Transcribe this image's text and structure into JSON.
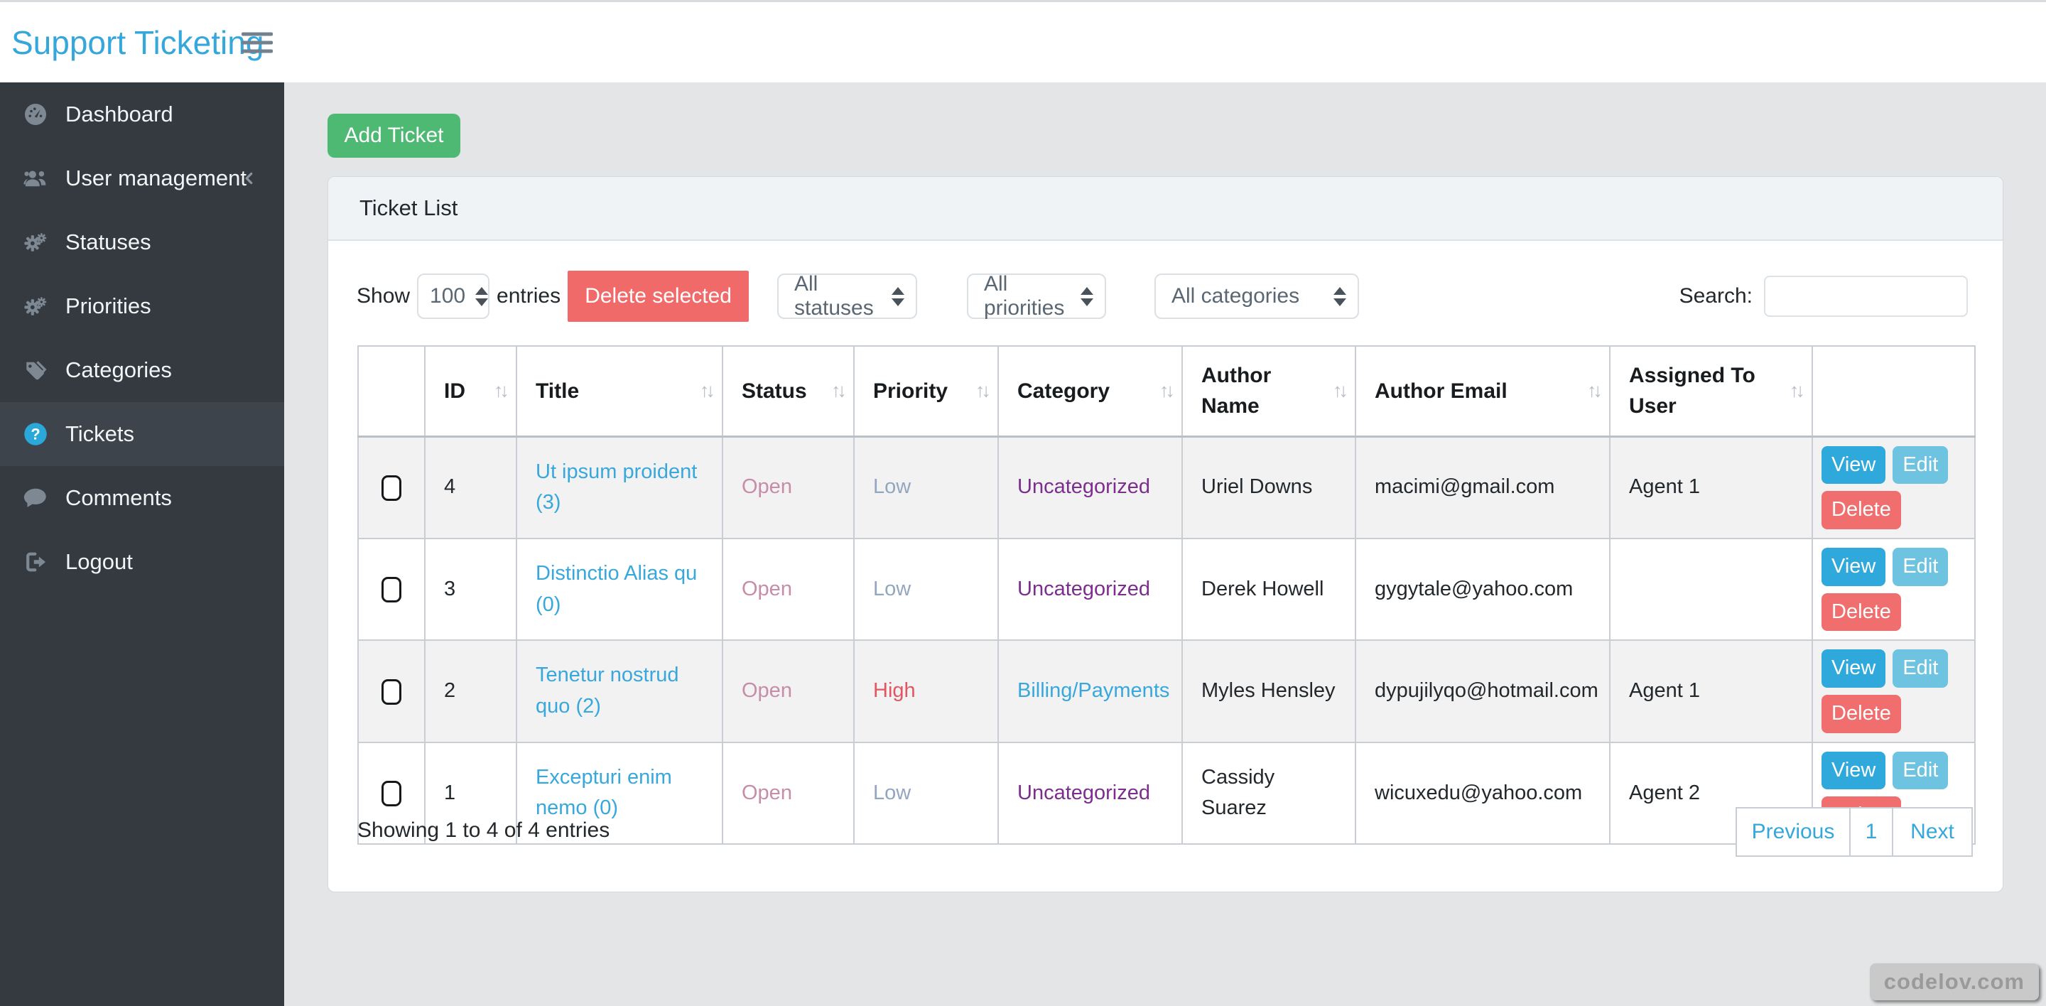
{
  "header": {
    "brand": "Support Ticketing"
  },
  "sidebar": {
    "items": [
      {
        "label": "Dashboard",
        "icon": "dashboard-icon"
      },
      {
        "label": "User management",
        "icon": "users-icon"
      },
      {
        "label": "Statuses",
        "icon": "gears-icon"
      },
      {
        "label": "Priorities",
        "icon": "gears-icon"
      },
      {
        "label": "Categories",
        "icon": "tags-icon"
      },
      {
        "label": "Tickets",
        "icon": "question-circle-icon",
        "active": true
      },
      {
        "label": "Comments",
        "icon": "comment-icon"
      },
      {
        "label": "Logout",
        "icon": "logout-icon"
      }
    ]
  },
  "toolbar": {
    "add_ticket_label": "Add Ticket"
  },
  "card": {
    "title": "Ticket List"
  },
  "controls": {
    "show_label": "Show",
    "show_value": "100",
    "entries_label": "entries",
    "delete_selected_label": "Delete selected",
    "status_filter": "All statuses",
    "priority_filter": "All priorities",
    "category_filter": "All categories",
    "search_label": "Search:",
    "search_value": ""
  },
  "table": {
    "columns": [
      "",
      "ID",
      "Title",
      "Status",
      "Priority",
      "Category",
      "Author Name",
      "Author Email",
      "Assigned To User",
      ""
    ],
    "rows": [
      {
        "id": "4",
        "title": "Ut ipsum proident (3)",
        "status": "Open",
        "priority": "Low",
        "category": "Uncategorized",
        "author_name": "Uriel Downs",
        "author_email": "macimi@gmail.com",
        "assigned_to": "Agent 1"
      },
      {
        "id": "3",
        "title": "Distinctio Alias qu (0)",
        "status": "Open",
        "priority": "Low",
        "category": "Uncategorized",
        "author_name": "Derek Howell",
        "author_email": "gygytale@yahoo.com",
        "assigned_to": ""
      },
      {
        "id": "2",
        "title": "Tenetur nostrud quo (2)",
        "status": "Open",
        "priority": "High",
        "category": "Billing/Payments",
        "author_name": "Myles Hensley",
        "author_email": "dypujilyqo@hotmail.com",
        "assigned_to": "Agent 1"
      },
      {
        "id": "1",
        "title": "Excepturi enim nemo (0)",
        "status": "Open",
        "priority": "Low",
        "category": "Uncategorized",
        "author_name": "Cassidy Suarez",
        "author_email": "wicuxedu@yahoo.com",
        "assigned_to": "Agent 2"
      }
    ],
    "actions": [
      "View",
      "Edit",
      "Delete"
    ]
  },
  "footer": {
    "summary": "Showing 1 to 4 of 4 entries",
    "pagination": [
      "Previous",
      "1",
      "Next"
    ]
  },
  "watermark": "codelov.com",
  "colors": {
    "brand_blue": "#35a7da",
    "green": "#4eb973",
    "danger_red": "#f16e6e",
    "view_blue": "#2fa8dc",
    "edit_blue": "#6ec4e0",
    "link_blue": "#38a8dc",
    "status_open": "#c78da8",
    "priority_low": "#93a6c0",
    "priority_high": "#e25563",
    "category_purple": "#7b2e8e",
    "sidebar_bg": "#343a40",
    "sidebar_active_bg": "#3d444c",
    "card_header_bg": "#f0f3f5",
    "main_bg": "#e4e5e6"
  }
}
